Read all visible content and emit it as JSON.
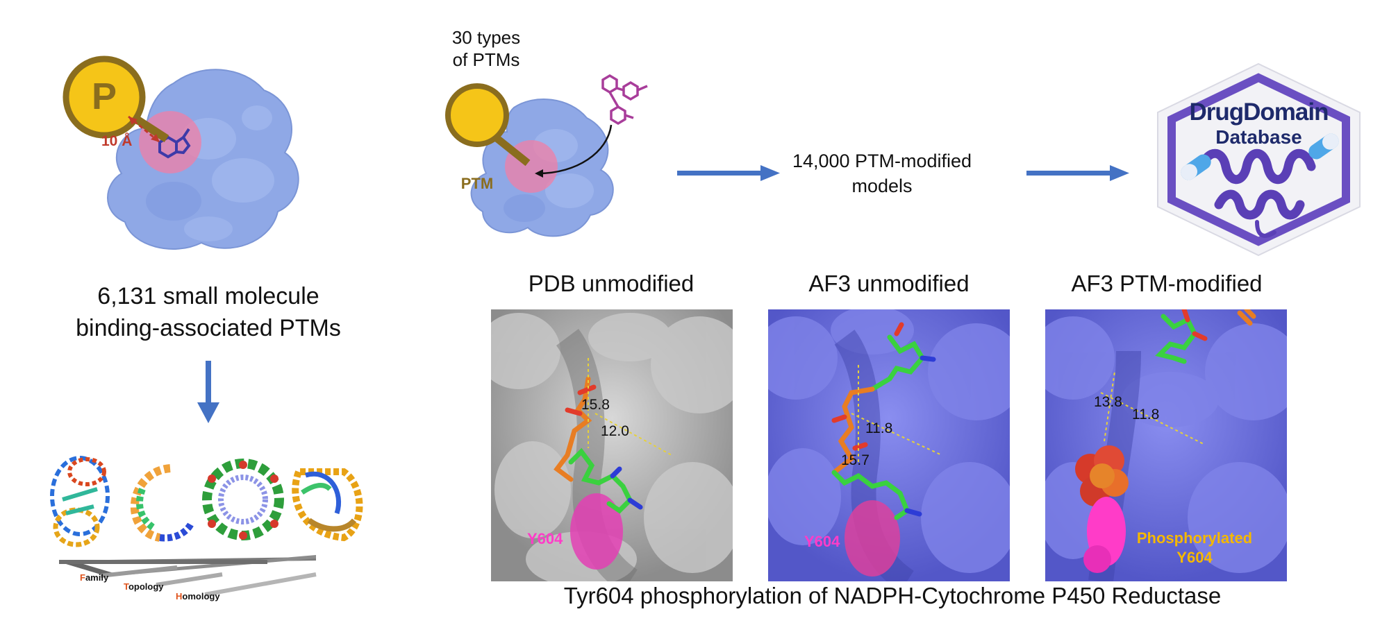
{
  "left": {
    "badge_label": "P",
    "distance_label": "10 Å",
    "caption_line1": "6,131 small molecule",
    "caption_line2": "binding-associated PTMs",
    "ecod_labels": {
      "family_initial": "F",
      "family_rest": "amily",
      "topology_initial": "T",
      "topology_rest": "opology",
      "homology_initial": "H",
      "homology_rest": "omology"
    }
  },
  "top": {
    "types_line1": "30 types",
    "types_line2": "of PTMs",
    "badge_label": "PTM",
    "models_line1": "14,000 PTM-modified",
    "models_line2": "models",
    "db_logo": {
      "line1": "DrugDomain",
      "line2": "Database"
    }
  },
  "panels": [
    {
      "title": "PDB unmodified",
      "distances": [
        "15.8",
        "12.0"
      ],
      "residue": "Y604"
    },
    {
      "title": "AF3 unmodified",
      "distances": [
        "11.8",
        "15.7"
      ],
      "residue": "Y604"
    },
    {
      "title": "AF3 PTM-modified",
      "distances": [
        "13.8",
        "11.8"
      ],
      "residue_line1": "Phosphorylated",
      "residue_line2": "Y604"
    }
  ],
  "bottom_caption": "Tyr604 phosphorylation of NADPH-Cytochrome P450 Reductase",
  "colors": {
    "arrow": "#4472c4",
    "protein": "#8fa8e6",
    "badge": "#f5c518",
    "badge_ring": "#8a6d1e",
    "binding_site": "#f07fa6",
    "accent_red": "#c0392b",
    "ligand_green": "#39d13e",
    "pdb_surface": "#a8a8a8",
    "af3_surface": "#6b6fd8",
    "residue_magenta": "#ff3cc8",
    "phospho_yellow": "#f5b800"
  }
}
